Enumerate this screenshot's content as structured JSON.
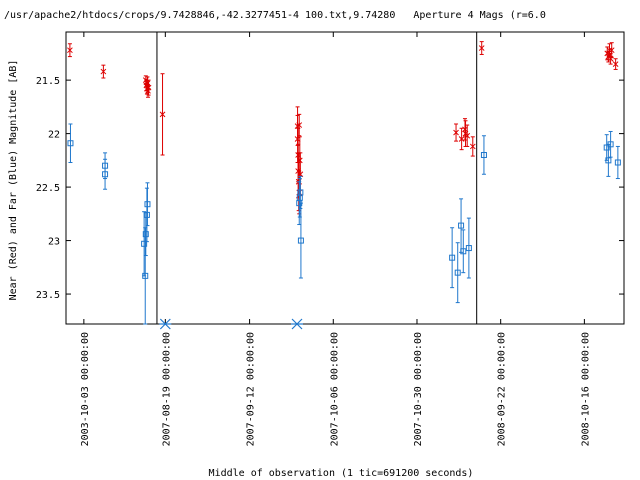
{
  "chart_data": {
    "type": "scatter",
    "title": "/usr/apache2/htdocs/crops/9.7428846,-42.3277451-4 100.txt,9.74280   Aperture 4 Mags (r=6.0",
    "xlabel": "Middle of observation (1 tic=691200 seconds)",
    "ylabel": "Near (Red) and Far (Blue) Magnitude [AB]",
    "y_inverted": true,
    "ylim": [
      23.78,
      21.05
    ],
    "y_ticks": [
      21.5,
      22,
      22.5,
      23,
      23.5
    ],
    "y_tick_labels": [
      "21.5",
      "22",
      "22.5",
      "23",
      "23.5"
    ],
    "x_tick_labels": [
      "2003-10-03 00:00:00",
      "2007-08-19 00:00:00",
      "2007-09-12 00:00:00",
      "2007-10-06 00:00:00",
      "2007-10-30 00:00:00",
      "2008-09-22 00:00:00",
      "2008-10-16 00:00:00"
    ],
    "x_ticks": [
      0.032,
      0.178,
      0.329,
      0.479,
      0.629,
      0.779,
      0.929
    ],
    "x_domain": [
      0,
      1
    ],
    "segment_breaks": [
      0.163,
      0.736
    ],
    "grid": false,
    "legend": "none",
    "markers": [
      0.178,
      0.414
    ],
    "series": [
      {
        "name": "Near",
        "color": "#dd0000",
        "marker": "x",
        "points": [
          {
            "x": 0.007,
            "y": 21.22,
            "err": 0.06
          },
          {
            "x": 0.067,
            "y": 21.42,
            "err": 0.06
          },
          {
            "x": 0.143,
            "y": 21.5,
            "err": 0.04
          },
          {
            "x": 0.144,
            "y": 21.55,
            "err": 0.05
          },
          {
            "x": 0.145,
            "y": 21.58,
            "err": 0.05
          },
          {
            "x": 0.146,
            "y": 21.53,
            "err": 0.06
          },
          {
            "x": 0.147,
            "y": 21.6,
            "err": 0.06
          },
          {
            "x": 0.148,
            "y": 21.57,
            "err": 0.07
          },
          {
            "x": 0.173,
            "y": 21.82,
            "err": 0.38
          },
          {
            "x": 0.415,
            "y": 21.93,
            "err": 0.18
          },
          {
            "x": 0.415,
            "y": 22.05,
            "err": 0.22
          },
          {
            "x": 0.416,
            "y": 22.2,
            "err": 0.25
          },
          {
            "x": 0.416,
            "y": 22.35,
            "err": 0.25
          },
          {
            "x": 0.417,
            "y": 22.45,
            "err": 0.27
          },
          {
            "x": 0.418,
            "y": 22.55,
            "err": 0.2
          },
          {
            "x": 0.418,
            "y": 21.92,
            "err": 0.1
          },
          {
            "x": 0.419,
            "y": 22.25,
            "err": 0.22
          },
          {
            "x": 0.42,
            "y": 22.38,
            "err": 0.2
          },
          {
            "x": 0.699,
            "y": 21.99,
            "err": 0.08
          },
          {
            "x": 0.709,
            "y": 22.05,
            "err": 0.1
          },
          {
            "x": 0.715,
            "y": 21.96,
            "err": 0.1
          },
          {
            "x": 0.716,
            "y": 22.0,
            "err": 0.12
          },
          {
            "x": 0.719,
            "y": 22.02,
            "err": 0.1
          },
          {
            "x": 0.729,
            "y": 22.12,
            "err": 0.09
          },
          {
            "x": 0.745,
            "y": 21.2,
            "err": 0.06
          },
          {
            "x": 0.97,
            "y": 21.25,
            "err": 0.06
          },
          {
            "x": 0.972,
            "y": 21.28,
            "err": 0.05
          },
          {
            "x": 0.974,
            "y": 21.22,
            "err": 0.06
          },
          {
            "x": 0.976,
            "y": 21.3,
            "err": 0.05
          },
          {
            "x": 0.978,
            "y": 21.22,
            "err": 0.07
          },
          {
            "x": 0.985,
            "y": 21.35,
            "err": 0.05
          }
        ]
      },
      {
        "name": "Far",
        "color": "#1f77cc",
        "marker": "square",
        "points": [
          {
            "x": 0.008,
            "y": 22.09,
            "err": 0.18
          },
          {
            "x": 0.07,
            "y": 22.3,
            "err": 0.12
          },
          {
            "x": 0.07,
            "y": 22.38,
            "err": 0.14
          },
          {
            "x": 0.14,
            "y": 23.03,
            "err": 0.3
          },
          {
            "x": 0.142,
            "y": 23.33,
            "err": 0.45
          },
          {
            "x": 0.143,
            "y": 22.94,
            "err": 0.2
          },
          {
            "x": 0.145,
            "y": 22.76,
            "err": 0.25
          },
          {
            "x": 0.146,
            "y": 22.66,
            "err": 0.2
          },
          {
            "x": 0.418,
            "y": 22.65,
            "err": 0.2
          },
          {
            "x": 0.419,
            "y": 22.6,
            "err": 0.18
          },
          {
            "x": 0.42,
            "y": 22.55,
            "err": 0.15
          },
          {
            "x": 0.421,
            "y": 23.0,
            "err": 0.35
          },
          {
            "x": 0.692,
            "y": 23.16,
            "err": 0.28
          },
          {
            "x": 0.702,
            "y": 23.3,
            "err": 0.28
          },
          {
            "x": 0.708,
            "y": 22.86,
            "err": 0.25
          },
          {
            "x": 0.712,
            "y": 23.1,
            "err": 0.2
          },
          {
            "x": 0.722,
            "y": 23.07,
            "err": 0.28
          },
          {
            "x": 0.749,
            "y": 22.2,
            "err": 0.18
          },
          {
            "x": 0.969,
            "y": 22.13,
            "err": 0.12
          },
          {
            "x": 0.972,
            "y": 22.25,
            "err": 0.15
          },
          {
            "x": 0.976,
            "y": 22.1,
            "err": 0.12
          },
          {
            "x": 0.989,
            "y": 22.27,
            "err": 0.15
          }
        ]
      }
    ]
  }
}
